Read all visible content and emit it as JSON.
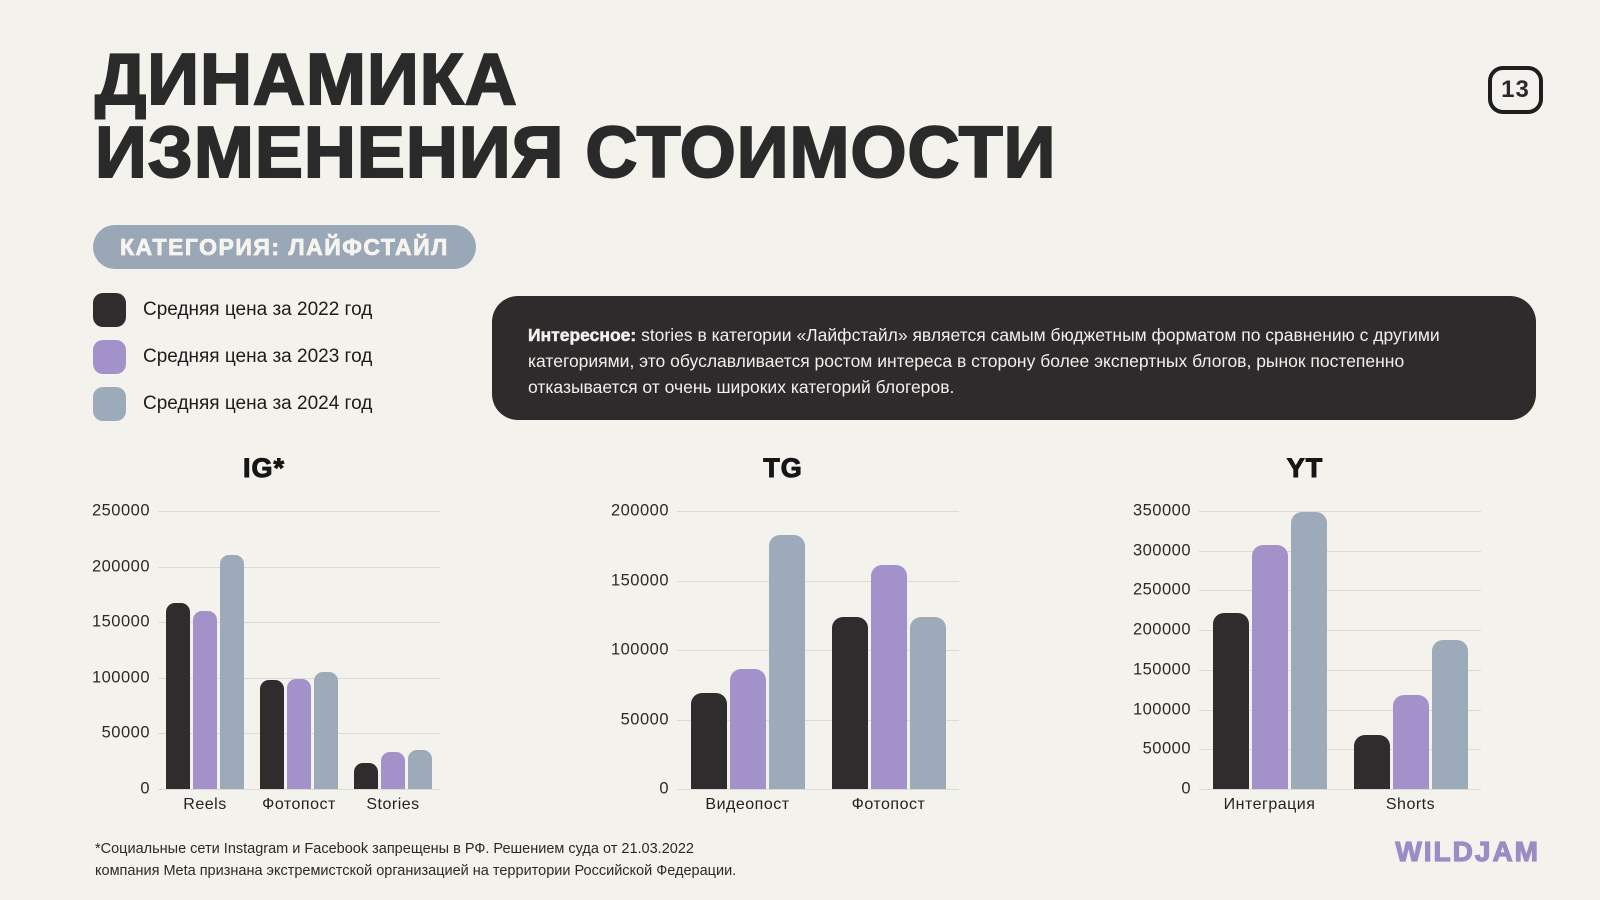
{
  "page": {
    "number": "13"
  },
  "header": {
    "title_line1": "ДИНАМИКА",
    "title_line2": "ИЗМЕНЕНИЯ СТОИМОСТИ",
    "category_badge": "КАТЕГОРИЯ: ЛАЙФСТАЙЛ"
  },
  "legend": {
    "items": [
      {
        "label": "Средняя цена за 2022 год",
        "color": "#2e2c2d"
      },
      {
        "label": "Средняя цена за 2023 год",
        "color": "#a392ca"
      },
      {
        "label": "Средняя цена за 2024 год",
        "color": "#9caaba"
      }
    ]
  },
  "info_box": {
    "lead": "Интересное:",
    "text": " stories в категории «Лайфстайл» является самым бюджетным форматом по сравнению с другими категориями, это обуславливается ростом интереса в сторону более экспертных блогов, рынок постепенно отказывается от очень широких категорий блогеров."
  },
  "chart_data": [
    {
      "type": "bar",
      "title": "IG*",
      "categories": [
        "Reels",
        "Фотопост",
        "Stories"
      ],
      "series": [
        {
          "name": "Средняя цена за 2022 год",
          "color": "#2e2c2d",
          "values": [
            167000,
            98000,
            23000
          ]
        },
        {
          "name": "Средняя цена за 2023 год",
          "color": "#a392ca",
          "values": [
            160000,
            99000,
            33000
          ]
        },
        {
          "name": "Средняя цена за 2024 год",
          "color": "#9caaba",
          "values": [
            210000,
            105000,
            35000
          ]
        }
      ],
      "ylim": [
        0,
        250000
      ],
      "yticks": [
        250000,
        200000,
        150000,
        100000,
        50000,
        0
      ],
      "grid": true,
      "legend_position": "top-left shared"
    },
    {
      "type": "bar",
      "title": "TG",
      "categories": [
        "Видеопост",
        "Фотопост"
      ],
      "series": [
        {
          "name": "Средняя цена за 2022 год",
          "color": "#2e2c2d",
          "values": [
            69000,
            124000
          ]
        },
        {
          "name": "Средняя цена за 2023 год",
          "color": "#a392ca",
          "values": [
            86000,
            161000
          ]
        },
        {
          "name": "Средняя цена за 2024 год",
          "color": "#9caaba",
          "values": [
            183000,
            124000
          ]
        }
      ],
      "ylim": [
        0,
        200000
      ],
      "yticks": [
        200000,
        150000,
        100000,
        50000,
        0
      ],
      "grid": true,
      "legend_position": "top-left shared"
    },
    {
      "type": "bar",
      "title": "YT",
      "categories": [
        "Интеграция",
        "Shorts"
      ],
      "series": [
        {
          "name": "Средняя цена за 2022 год",
          "color": "#2e2c2d",
          "values": [
            221000,
            68000
          ]
        },
        {
          "name": "Средняя цена за 2023 год",
          "color": "#a392ca",
          "values": [
            307000,
            118000
          ]
        },
        {
          "name": "Средняя цена за 2024 год",
          "color": "#9caaba",
          "values": [
            349000,
            188000
          ]
        }
      ],
      "ylim": [
        0,
        350000
      ],
      "yticks": [
        350000,
        300000,
        250000,
        200000,
        150000,
        100000,
        50000,
        0
      ],
      "grid": true,
      "legend_position": "top-left shared"
    }
  ],
  "footer": {
    "note_line1": "*Социальные сети Instagram и Facebook запрещены в РФ. Решением суда от 21.03.2022",
    "note_line2": "компания Meta признана экстремистской организацией на территории Российской Федерации.",
    "logo": "WILDJAM"
  },
  "colors": {
    "background": "#f4f2ec",
    "year_2022": "#2e2c2d",
    "year_2023": "#a392ca",
    "year_2024": "#9caaba",
    "category_badge_bg": "#9aa7b7",
    "info_box_bg": "#2d2b2c",
    "gridline": "#dcdad3",
    "logo": "#9c8cc5"
  }
}
